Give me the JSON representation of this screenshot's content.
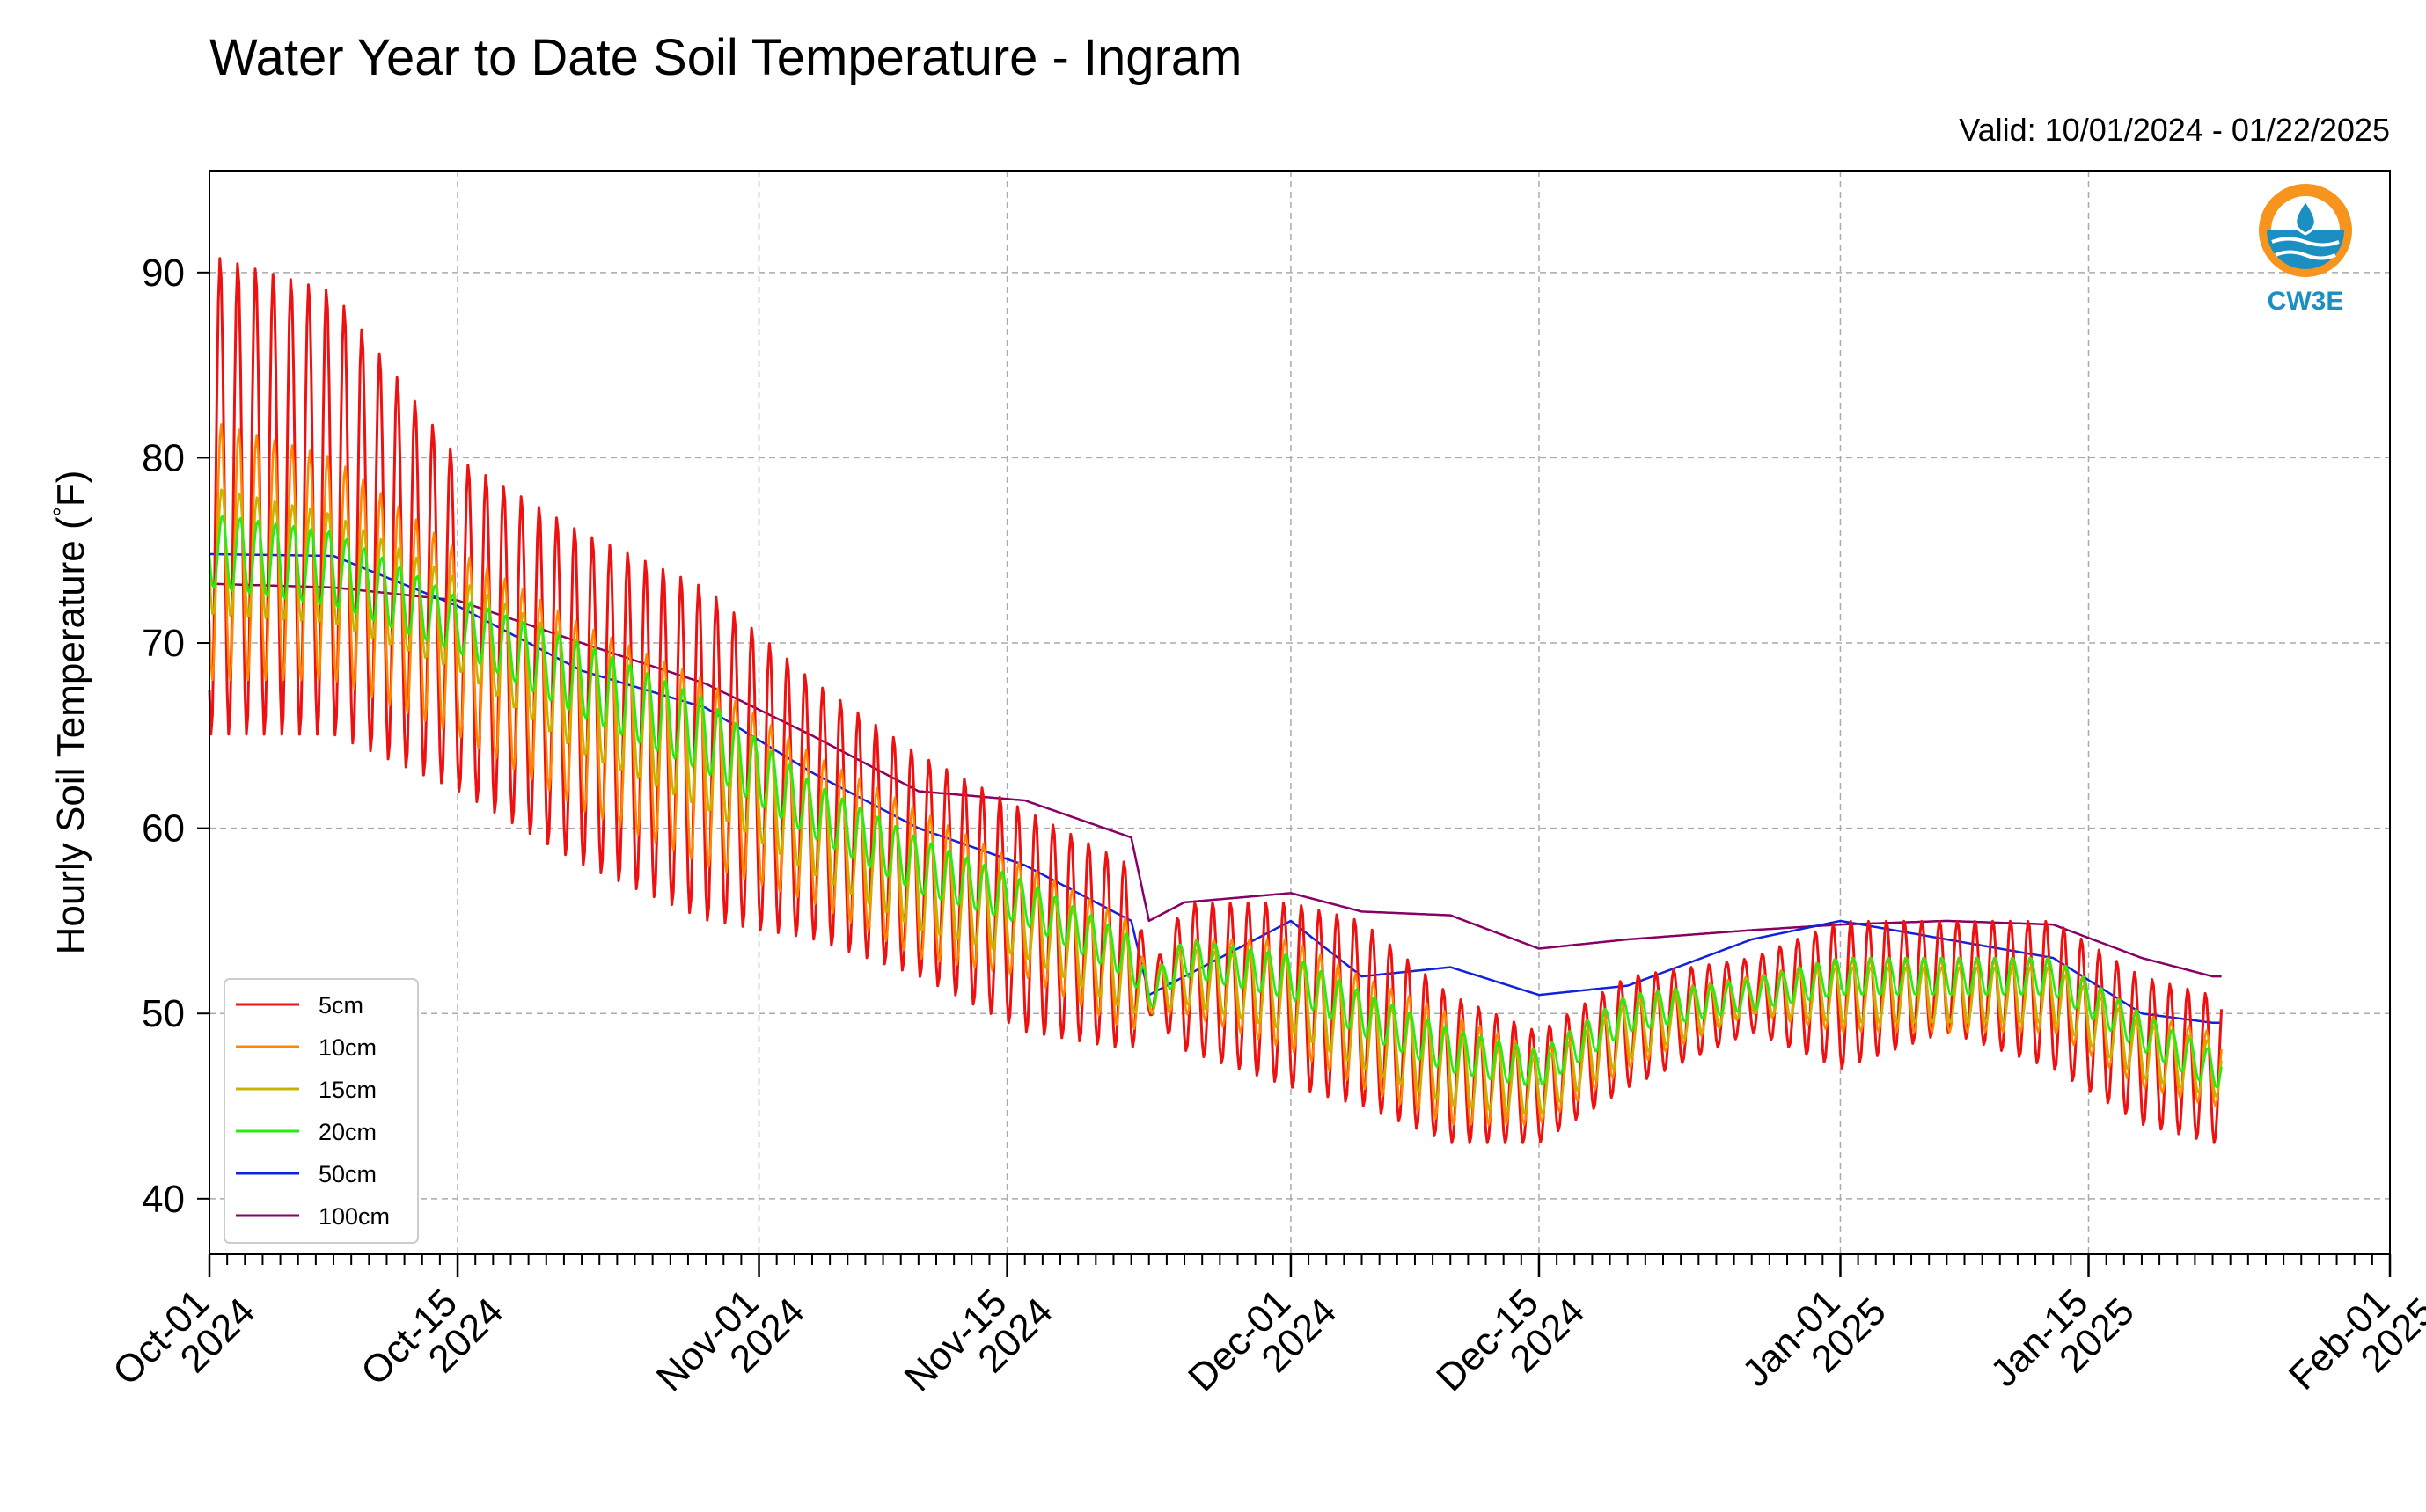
{
  "page": {
    "title": "Water Year to Date Soil Temperature - Ingram",
    "valid_text": "Valid: 10/01/2024 - 01/22/2025",
    "logo_text": "CW3E"
  },
  "colors": {
    "5cm": "#ee1111",
    "10cm": "#ff8800",
    "15cm": "#c8b400",
    "20cm": "#22ee11",
    "50cm": "#1122dd",
    "100cm": "#880066",
    "logo_orange": "#f7941d",
    "logo_blue": "#1b8fc2"
  },
  "chart_data": {
    "type": "line",
    "title": "Water Year to Date Soil Temperature - Ingram",
    "subtitle": "Valid: 10/01/2024 - 01/22/2025",
    "ylabel": "Hourly Soil Temperature (°F)",
    "xlabel": "",
    "xlim": [
      "2024-10-01",
      "2025-02-01"
    ],
    "ylim": [
      37,
      95.5
    ],
    "grid": true,
    "legend_position": "lower-left",
    "x_ticks": [
      {
        "date": "2024-10-01",
        "line1": "Oct-01",
        "line2": "2024"
      },
      {
        "date": "2024-10-15",
        "line1": "Oct-15",
        "line2": "2024"
      },
      {
        "date": "2024-11-01",
        "line1": "Nov-01",
        "line2": "2024"
      },
      {
        "date": "2024-11-15",
        "line1": "Nov-15",
        "line2": "2024"
      },
      {
        "date": "2024-12-01",
        "line1": "Dec-01",
        "line2": "2024"
      },
      {
        "date": "2024-12-15",
        "line1": "Dec-15",
        "line2": "2024"
      },
      {
        "date": "2025-01-01",
        "line1": "Jan-01",
        "line2": "2025"
      },
      {
        "date": "2025-01-15",
        "line1": "Jan-15",
        "line2": "2025"
      },
      {
        "date": "2025-02-01",
        "line1": "Feb-01",
        "line2": "2025"
      }
    ],
    "y_ticks": [
      "40",
      "50",
      "60",
      "70",
      "80",
      "90"
    ],
    "baseline_x": [
      "2024-10-01",
      "2024-10-08",
      "2024-10-15",
      "2024-10-22",
      "2024-10-29",
      "2024-11-04",
      "2024-11-10",
      "2024-11-16",
      "2024-11-22",
      "2024-11-23",
      "2024-11-25",
      "2024-12-01",
      "2024-12-05",
      "2024-12-10",
      "2024-12-15",
      "2024-12-20",
      "2024-12-27",
      "2025-01-01",
      "2025-01-07",
      "2025-01-13",
      "2025-01-18",
      "2025-01-22"
    ],
    "series": [
      {
        "name": "5cm",
        "key": "5cm",
        "mean": [
          78,
          77,
          71,
          67,
          64,
          61,
          58,
          55,
          53,
          51,
          52,
          51,
          50,
          47,
          46,
          49,
          51,
          51,
          52,
          51,
          48,
          47
        ],
        "amplitude": [
          13,
          12,
          9,
          9,
          9,
          7,
          6,
          6,
          5,
          1,
          4,
          5,
          5,
          4,
          3,
          3,
          2,
          4,
          3,
          4,
          4,
          4
        ]
      },
      {
        "name": "10cm",
        "key": "10cm",
        "mean": [
          75,
          74,
          70,
          66,
          63,
          60,
          57,
          55,
          52,
          51,
          52,
          51,
          49,
          47,
          46,
          49,
          51,
          51,
          51,
          51,
          48,
          47
        ],
        "amplitude": [
          7,
          6,
          5,
          5,
          5,
          4,
          4,
          3,
          3,
          1,
          2,
          3,
          3,
          3,
          2,
          2,
          1,
          2,
          2,
          2,
          2,
          2
        ]
      },
      {
        "name": "15cm",
        "key": "15cm",
        "mean": [
          75,
          74,
          71,
          67,
          64,
          60,
          57,
          55,
          52,
          51,
          52,
          51,
          49,
          47,
          46,
          49,
          51,
          51,
          51,
          51,
          48,
          47
        ],
        "amplitude": [
          3.5,
          3,
          2.5,
          3,
          3,
          2.5,
          2.5,
          2,
          2,
          1,
          1.5,
          2,
          2,
          2,
          1.5,
          1.5,
          1,
          1.5,
          1.5,
          1.5,
          1.5,
          1.5
        ]
      },
      {
        "name": "20cm",
        "key": "20cm",
        "mean": [
          75,
          74,
          71,
          68,
          65,
          61,
          58,
          56,
          53,
          51,
          53,
          52,
          50,
          48,
          47,
          50,
          51,
          52,
          52,
          52,
          49,
          47
        ],
        "amplitude": [
          2,
          2,
          1.5,
          2,
          2,
          1.5,
          1.5,
          1.2,
          1.2,
          0.8,
          1,
          1.2,
          1.2,
          1.2,
          1,
          1,
          0.8,
          1,
          1,
          1,
          1,
          1
        ]
      },
      {
        "name": "50cm",
        "key": "50cm",
        "mean": [
          74.8,
          74.7,
          72,
          68.5,
          66.5,
          63,
          60,
          58,
          55,
          51,
          52,
          55,
          52,
          52.5,
          51,
          51.5,
          54,
          55,
          54,
          53,
          50,
          49.5
        ],
        "amplitude": []
      },
      {
        "name": "100cm",
        "key": "100cm",
        "mean": [
          73.2,
          73,
          72.3,
          70,
          67.8,
          65,
          62,
          61.5,
          59.5,
          55,
          56,
          56.5,
          55.5,
          55.3,
          53.5,
          54,
          54.5,
          54.8,
          55,
          54.8,
          53,
          52
        ],
        "amplitude": []
      }
    ]
  }
}
